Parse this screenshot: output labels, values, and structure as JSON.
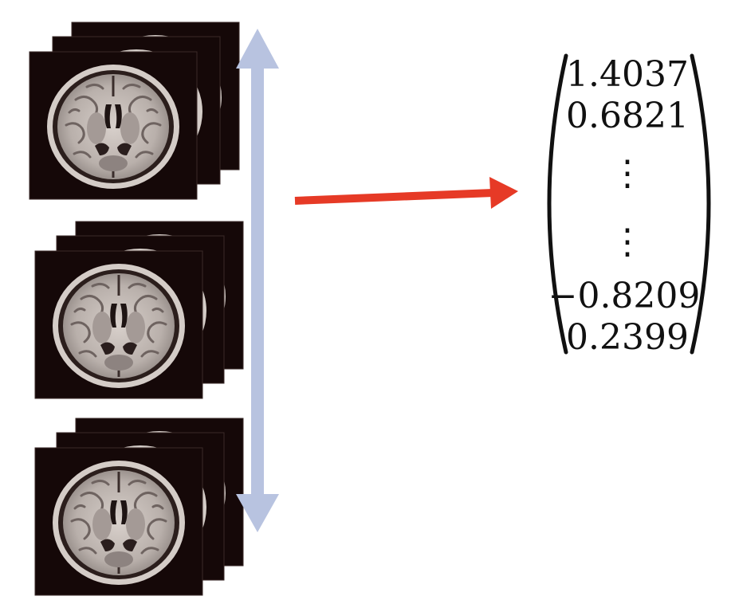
{
  "colors": {
    "background": "#ffffff",
    "slice_background": "#150808",
    "double_arrow": "#b8c3e0",
    "pointer_arrow": "#e63a26",
    "text": "#111111"
  },
  "slice_groups": [
    {
      "name": "top-stack",
      "slices": 3
    },
    {
      "name": "middle-stack",
      "slices": 3
    },
    {
      "name": "bottom-stack",
      "slices": 3
    }
  ],
  "vector": {
    "entries": [
      "1.4037",
      "0.6821",
      "⋮",
      "⋮",
      "−0.8209",
      "0.2399"
    ]
  }
}
